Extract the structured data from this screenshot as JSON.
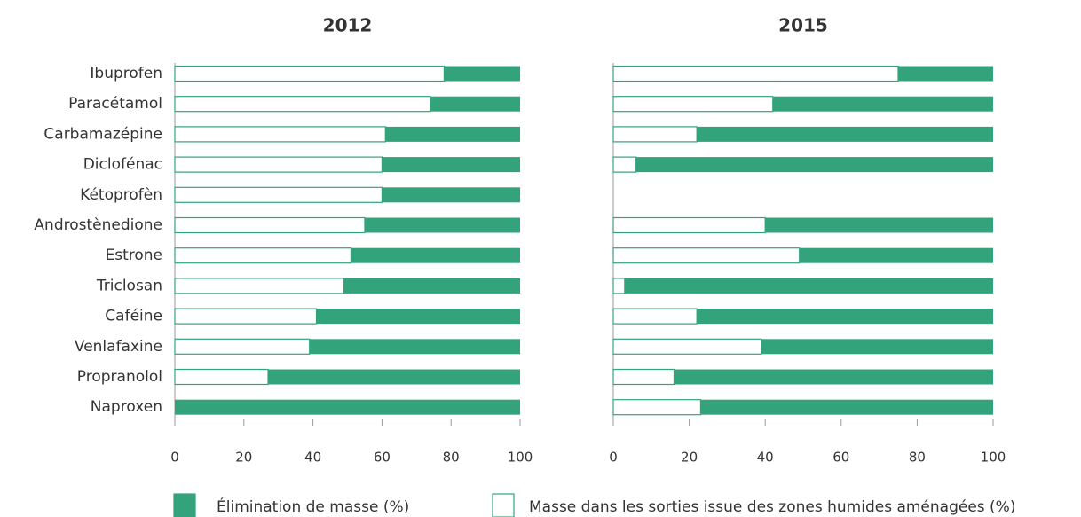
{
  "chart_data": {
    "type": "stacked_barh",
    "categories": [
      "Ibuprofen",
      "Paracétamol",
      "Carbamazépine",
      "Diclofénac",
      "Kétoprofèn",
      "Androstènedione",
      "Estrone",
      "Triclosan",
      "Caféine",
      "Venlafaxine",
      "Propranolol",
      "Naproxen"
    ],
    "series": [
      {
        "name": "Masse dans les sorties issue des zones humides aménagées (%)",
        "color": "#ffffff",
        "edge": "#33a37c"
      },
      {
        "name": "Élimination de masse  (%)",
        "color": "#33a37c"
      }
    ],
    "xlim": [
      0,
      100
    ],
    "xticks": [
      0,
      20,
      40,
      60,
      80,
      100
    ],
    "panels": [
      {
        "title": "2012",
        "series": [
          {
            "values": [
              78,
              74,
              61,
              60,
              60,
              55,
              51,
              49,
              41,
              39,
              27,
              0
            ]
          },
          {
            "values": [
              22,
              26,
              39,
              40,
              40,
              45,
              49,
              51,
              59,
              61,
              73,
              100
            ]
          }
        ]
      },
      {
        "title": "2015",
        "series": [
          {
            "values": [
              75,
              42,
              22,
              6,
              null,
              40,
              49,
              3,
              22,
              39,
              16,
              23
            ]
          },
          {
            "values": [
              25,
              58,
              78,
              94,
              null,
              60,
              51,
              97,
              78,
              61,
              84,
              77
            ]
          }
        ]
      }
    ]
  }
}
